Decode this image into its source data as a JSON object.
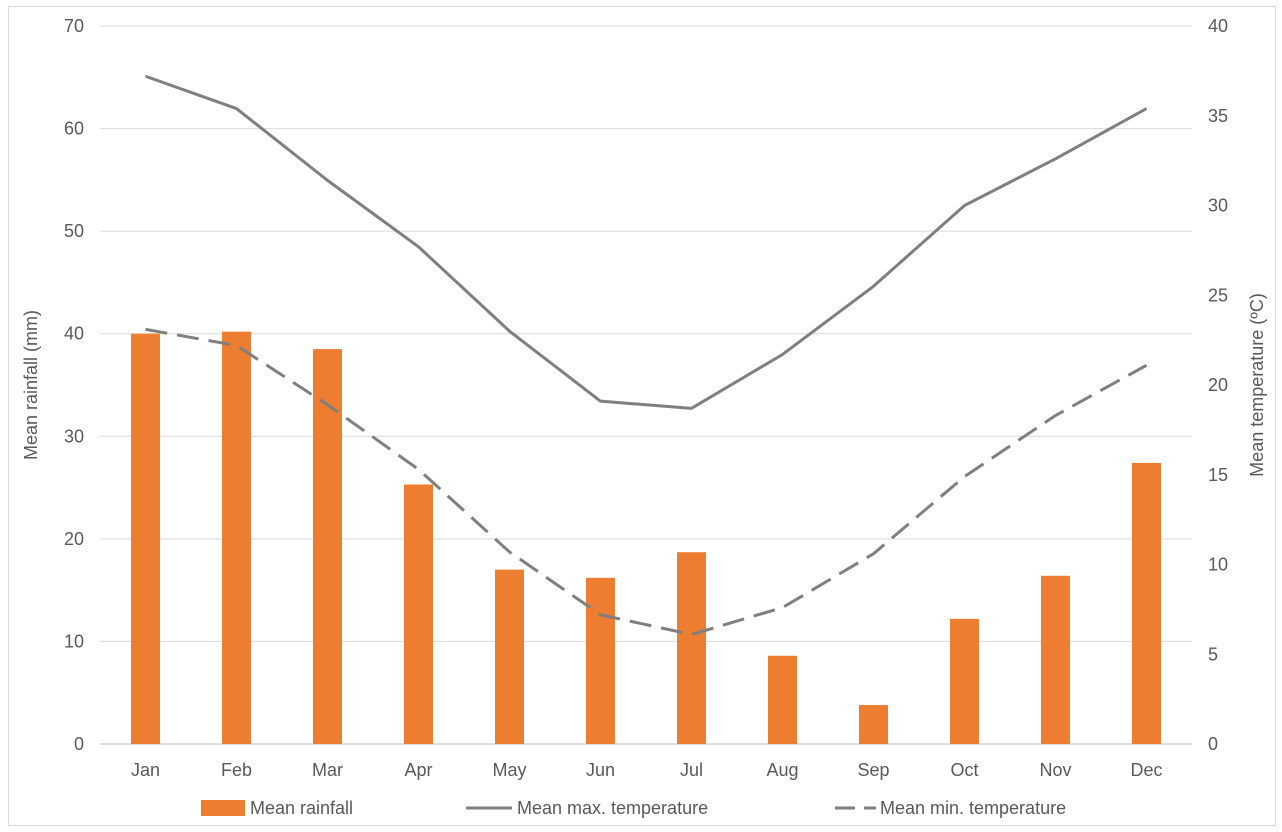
{
  "chart_data": {
    "type": "bar",
    "categories": [
      "Jan",
      "Feb",
      "Mar",
      "Apr",
      "May",
      "Jun",
      "Jul",
      "Aug",
      "Sep",
      "Oct",
      "Nov",
      "Dec"
    ],
    "series": [
      {
        "name": "Mean rainfall",
        "kind": "bar",
        "axis": "left",
        "color": "#ED7D31",
        "values": [
          40.0,
          40.2,
          38.5,
          25.3,
          17.0,
          16.2,
          18.7,
          8.6,
          3.8,
          12.2,
          16.4,
          27.4
        ]
      },
      {
        "name": "Mean max. temperature",
        "kind": "line",
        "style": "solid",
        "axis": "right",
        "color": "#7F7F7F",
        "values": [
          37.2,
          35.4,
          31.4,
          27.7,
          23.0,
          19.1,
          18.7,
          21.7,
          25.5,
          30.0,
          32.6,
          35.4
        ]
      },
      {
        "name": "Mean min. temperature",
        "kind": "line",
        "style": "dashed",
        "axis": "right",
        "color": "#7F7F7F",
        "values": [
          23.1,
          22.2,
          18.9,
          15.3,
          10.7,
          7.2,
          6.1,
          7.6,
          10.6,
          14.9,
          18.3,
          21.1
        ]
      }
    ],
    "ylabel": "Mean rainfall (mm)",
    "y2label": "Mean temperature (ºC)",
    "ylim": [
      0,
      70
    ],
    "y2lim": [
      0,
      40
    ],
    "yticks": [
      "0",
      "10",
      "20",
      "30",
      "40",
      "50",
      "60",
      "70"
    ],
    "y2ticks": [
      "0",
      "5",
      "10",
      "15",
      "20",
      "25",
      "30",
      "35",
      "40"
    ],
    "grid": true,
    "legend_position": "bottom"
  }
}
